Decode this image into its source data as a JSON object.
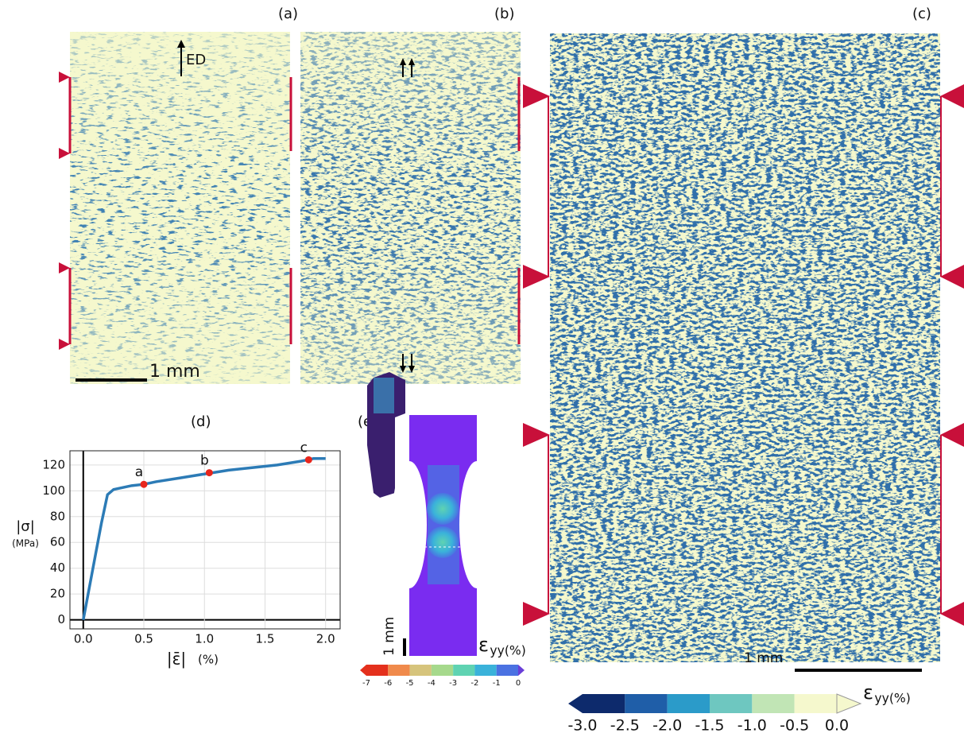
{
  "panels": {
    "a": "(a)",
    "b": "(b)",
    "c": "(c)",
    "d": "(d)",
    "e": "(e)"
  },
  "ed_label": "ED",
  "scale_bar_a": "1 mm",
  "scale_bar_c": "1 mm",
  "scale_bar_e": "1 mm",
  "strain_label": {
    "symbol": "ε",
    "subscript": "yy(%)"
  },
  "colorbar_c": {
    "ticks": [
      {
        "value": -3,
        "label": "-3.0"
      },
      {
        "value": -2.5,
        "label": "-2.5"
      },
      {
        "value": -2,
        "label": "-2.0"
      },
      {
        "value": -1.5,
        "label": "-1.5"
      },
      {
        "value": -1,
        "label": "-1.0"
      },
      {
        "value": -0.5,
        "label": "-0.5"
      },
      {
        "value": 0,
        "label": "0.0"
      }
    ],
    "colors": [
      "#0d2a6c",
      "#1f5ea8",
      "#2b9bc9",
      "#6ec7c0",
      "#c1e5b5",
      "#f5f8cd"
    ]
  },
  "colorbar_e": {
    "ticks": [
      -7,
      -6,
      -5,
      -4,
      -3,
      -2,
      -1,
      0
    ],
    "colors": [
      "#e4301c",
      "#f08a4b",
      "#d6c47c",
      "#a6d98c",
      "#5fd3b2",
      "#3ab2da",
      "#4b72e2"
    ]
  },
  "chart_data": {
    "type": "line",
    "color": "#2c7bb6",
    "y_label": "|σ|",
    "y_unit": "(MPa)",
    "x_label": "|ε̄|",
    "x_unit": "(%)",
    "x": [
      0,
      0.05,
      0.1,
      0.15,
      0.2,
      0.25,
      0.3,
      0.4,
      0.5,
      0.6,
      0.8,
      1.0,
      1.2,
      1.4,
      1.6,
      1.8,
      1.9,
      2.0
    ],
    "values": [
      0,
      25,
      50,
      75,
      97,
      101,
      102,
      104,
      105,
      107,
      110,
      113,
      116,
      118,
      120,
      123,
      125,
      125
    ],
    "xlim": [
      -0.11,
      2.12
    ],
    "ylim": [
      -7,
      131
    ],
    "xticks": [
      {
        "value": 0,
        "label": "0.0"
      },
      {
        "value": 0.5,
        "label": "0.5"
      },
      {
        "value": 1,
        "label": "1.0"
      },
      {
        "value": 1.5,
        "label": "1.5"
      },
      {
        "value": 2,
        "label": "2.0"
      }
    ],
    "yticks": [
      0,
      20,
      40,
      60,
      80,
      100,
      120
    ],
    "grid": true,
    "annotations": [
      {
        "text": "a",
        "x": 0.5,
        "y": 105
      },
      {
        "text": "b",
        "x": 1.04,
        "y": 114
      },
      {
        "text": "c",
        "x": 1.86,
        "y": 124
      }
    ],
    "annotation_color": "#e8261c"
  }
}
